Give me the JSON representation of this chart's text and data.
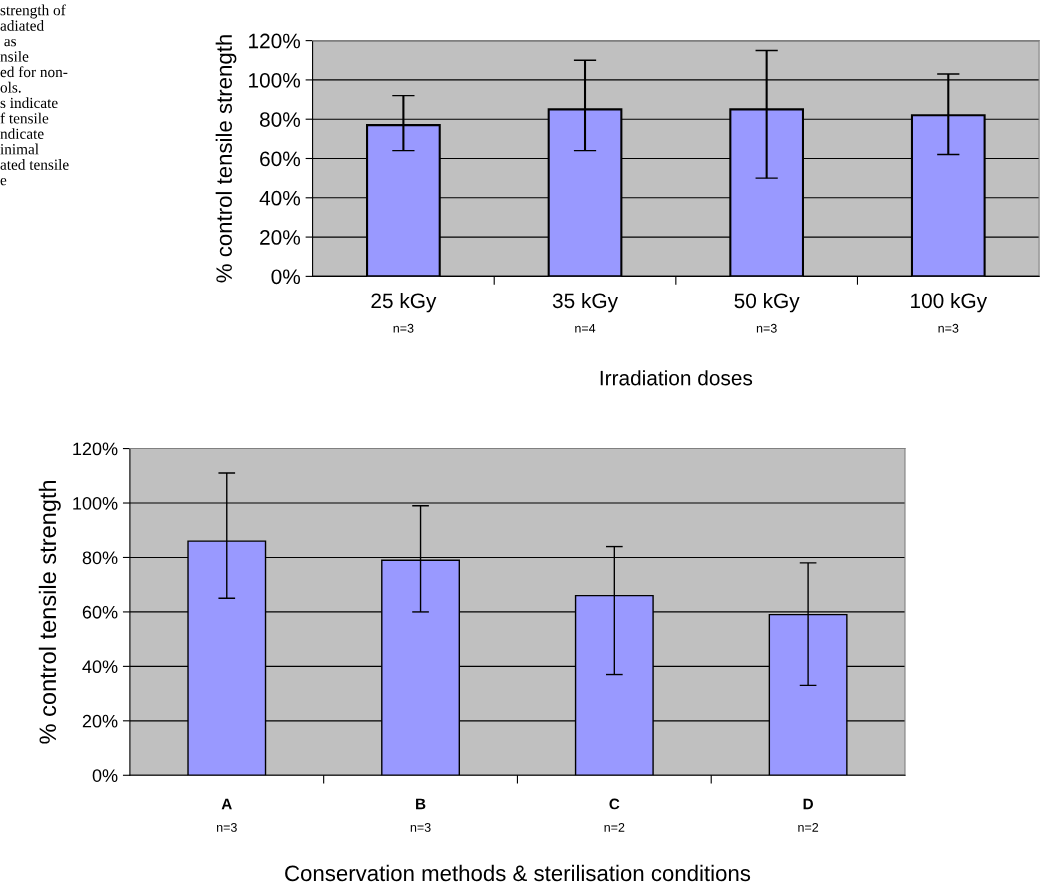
{
  "chart_data": [
    {
      "type": "bar",
      "ylabel": "% control tensile strength",
      "xlabel": "Irradiation doses",
      "categories": [
        "25 kGy\nn=3",
        "35 kGy\nn=4",
        "50 kGy\nn=3",
        "100 kGy\nn=3"
      ],
      "series": [
        {
          "color": "#9999ff",
          "values": [
            77,
            85,
            85,
            82
          ],
          "errors": [
            [
              64,
              92
            ],
            [
              64,
              110
            ],
            [
              50,
              115
            ],
            [
              62,
              103
            ]
          ]
        }
      ],
      "ylim": [
        0,
        120
      ],
      "yticks": [
        {
          "value": 0,
          "label": "0%"
        },
        {
          "value": 20,
          "label": "20%"
        },
        {
          "value": 40,
          "label": "40%"
        },
        {
          "value": 60,
          "label": "60%"
        },
        {
          "value": 80,
          "label": "80%"
        },
        {
          "value": 100,
          "label": "100%"
        },
        {
          "value": 120,
          "label": "120%"
        }
      ],
      "grid": "y",
      "legend": false,
      "annotations": [
        "strength of\nadiated\n as\nnsile\ned for non-\nols.\ns indicate\nf tensile\nndicate\ninimal\nated tensile\ne"
      ]
    },
    {
      "type": "bar",
      "ylabel": "% control tensile strength",
      "xlabel": "Conservation methods & sterilisation conditions",
      "categories": [
        "A\nn=3",
        "B\nn=3",
        "C\nn=2",
        "D\nn=2"
      ],
      "series": [
        {
          "color": "#9999ff",
          "values": [
            86,
            79,
            66,
            59
          ],
          "errors": [
            [
              65,
              111
            ],
            [
              60,
              99
            ],
            [
              37,
              84
            ],
            [
              33,
              78
            ]
          ]
        }
      ],
      "ylim": [
        0,
        120
      ],
      "yticks": [
        {
          "value": 0,
          "label": "0%"
        },
        {
          "value": 20,
          "label": "20%"
        },
        {
          "value": 40,
          "label": "40%"
        },
        {
          "value": 60,
          "label": "60%"
        },
        {
          "value": 80,
          "label": "80%"
        },
        {
          "value": 100,
          "label": "100%"
        },
        {
          "value": 120,
          "label": "120%"
        }
      ],
      "grid": "y",
      "legend": false
    }
  ]
}
